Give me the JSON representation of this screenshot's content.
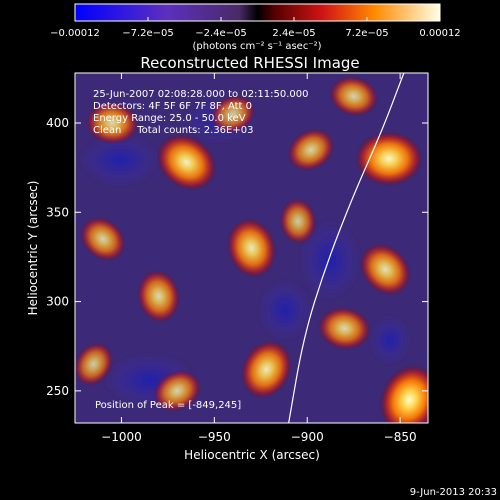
{
  "chart_data": {
    "type": "heatmap",
    "title": "Reconstructed RHESSI Image",
    "xlabel": "Heliocentric X (arcsec)",
    "ylabel": "Heliocentric Y (arcsec)",
    "xlim": [
      -1025,
      -835
    ],
    "ylim": [
      232,
      428
    ],
    "xticks": [
      -1000,
      -950,
      -900,
      -850
    ],
    "xtick_labels": [
      "−1000",
      "−950",
      "−900",
      "−850"
    ],
    "yticks": [
      250,
      300,
      350,
      400
    ],
    "ytick_labels": [
      "250",
      "300",
      "350",
      "400"
    ],
    "colorbar": {
      "ticks": [
        -0.00012,
        -7.2e-05,
        -2.4e-05,
        2.4e-05,
        7.2e-05,
        0.00012
      ],
      "tick_labels": [
        "−0.00012",
        "−7.2e−05",
        "−2.4e−05",
        "2.4e−05",
        "7.2e−05",
        "0.00012"
      ],
      "unit_label": "(photons cm⁻² s⁻¹ asec⁻²)",
      "range": [
        -0.00012,
        0.00012
      ]
    },
    "annotations": [
      "25-Jun-2007 02:08:28.000 to 02:11:50.000",
      "Detectors: 4F 5F 6F 7F 8F, Att 0",
      "Energy Range: 25.0 - 50.0 keV",
      "Clean     Total counts: 2.36E+03"
    ],
    "peak_label": "Position of Peak = [-849,245]",
    "peak": [
      -849,
      245
    ],
    "limb_curve": [
      [
        -910,
        232
      ],
      [
        -902,
        280
      ],
      [
        -890,
        320
      ],
      [
        -875,
        360
      ],
      [
        -860,
        395
      ],
      [
        -848,
        428
      ]
    ],
    "blobs": [
      {
        "x": -856,
        "y": 380,
        "value": 0.00011
      },
      {
        "x": -965,
        "y": 378,
        "value": 0.0001
      },
      {
        "x": -930,
        "y": 330,
        "value": 9e-05
      },
      {
        "x": -845,
        "y": 245,
        "value": 0.00012
      },
      {
        "x": -898,
        "y": 385,
        "value": 6e-05
      },
      {
        "x": -1005,
        "y": 400,
        "value": 7e-05
      },
      {
        "x": -1010,
        "y": 335,
        "value": 6e-05
      },
      {
        "x": -980,
        "y": 303,
        "value": 7e-05
      },
      {
        "x": -922,
        "y": 262,
        "value": 9e-05
      },
      {
        "x": -970,
        "y": 250,
        "value": 6e-05
      },
      {
        "x": -880,
        "y": 285,
        "value": 7e-05
      },
      {
        "x": -858,
        "y": 318,
        "value": 8e-05
      },
      {
        "x": -905,
        "y": 345,
        "value": 5e-05
      },
      {
        "x": -1015,
        "y": 265,
        "value": 5e-05
      },
      {
        "x": -940,
        "y": 405,
        "value": 5e-05
      },
      {
        "x": -875,
        "y": 415,
        "value": 6e-05
      }
    ]
  },
  "footer": {
    "timestamp": "9-Jun-2013 20:33"
  }
}
